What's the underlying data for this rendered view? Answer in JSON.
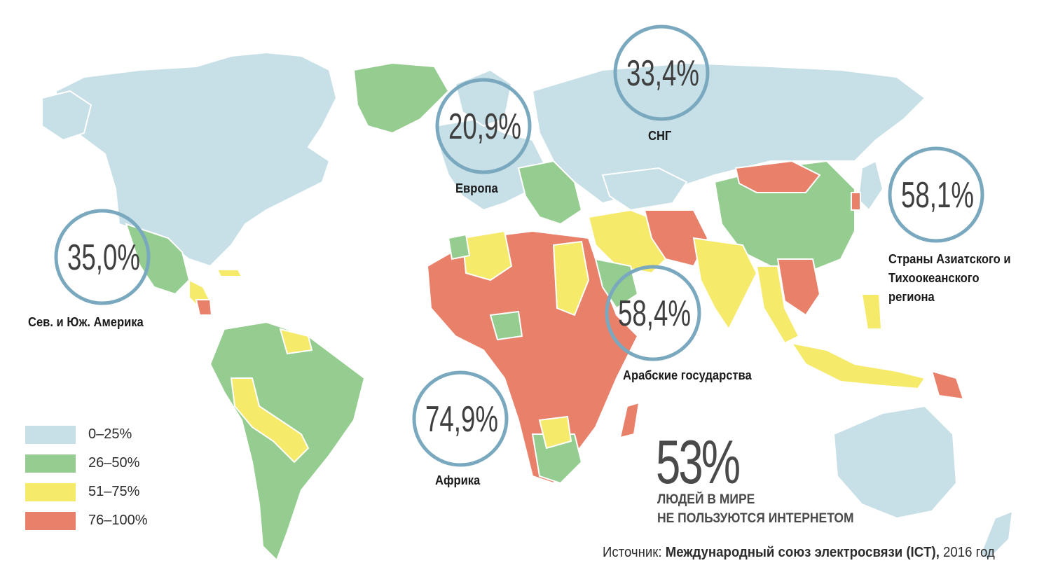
{
  "map": {
    "legend": [
      {
        "key": "low",
        "label": "0–25%",
        "color": "#c7dfe6"
      },
      {
        "key": "mid",
        "label": "26–50%",
        "color": "#95cc8f"
      },
      {
        "key": "high",
        "label": "51–75%",
        "color": "#f6ea6b"
      },
      {
        "key": "veryhigh",
        "label": "76–100%",
        "color": "#e8806a"
      }
    ],
    "circle_color": "#7aa9bf",
    "regions": [
      {
        "name": "Сев. и Юж. Америка",
        "value": "35,0%"
      },
      {
        "name": "Европа",
        "value": "20,9%"
      },
      {
        "name": "СНГ",
        "value": "33,4%"
      },
      {
        "name": "Страны Азиатского и Тихоокеанского региона",
        "value": "58,1%"
      },
      {
        "name": "Арабские государства",
        "value": "58,4%"
      },
      {
        "name": "Африка",
        "value": "74,9%"
      }
    ],
    "headline": {
      "value": "53%",
      "caption_line1": "ЛЮДЕЙ В МИРЕ",
      "caption_line2": "НЕ ПОЛЬЗУЮТСЯ ИНТЕРНЕТОМ"
    },
    "source": {
      "prefix": "Источник:",
      "org": "Международный союз электросвязи (ICT),",
      "year": "2016 год"
    }
  }
}
